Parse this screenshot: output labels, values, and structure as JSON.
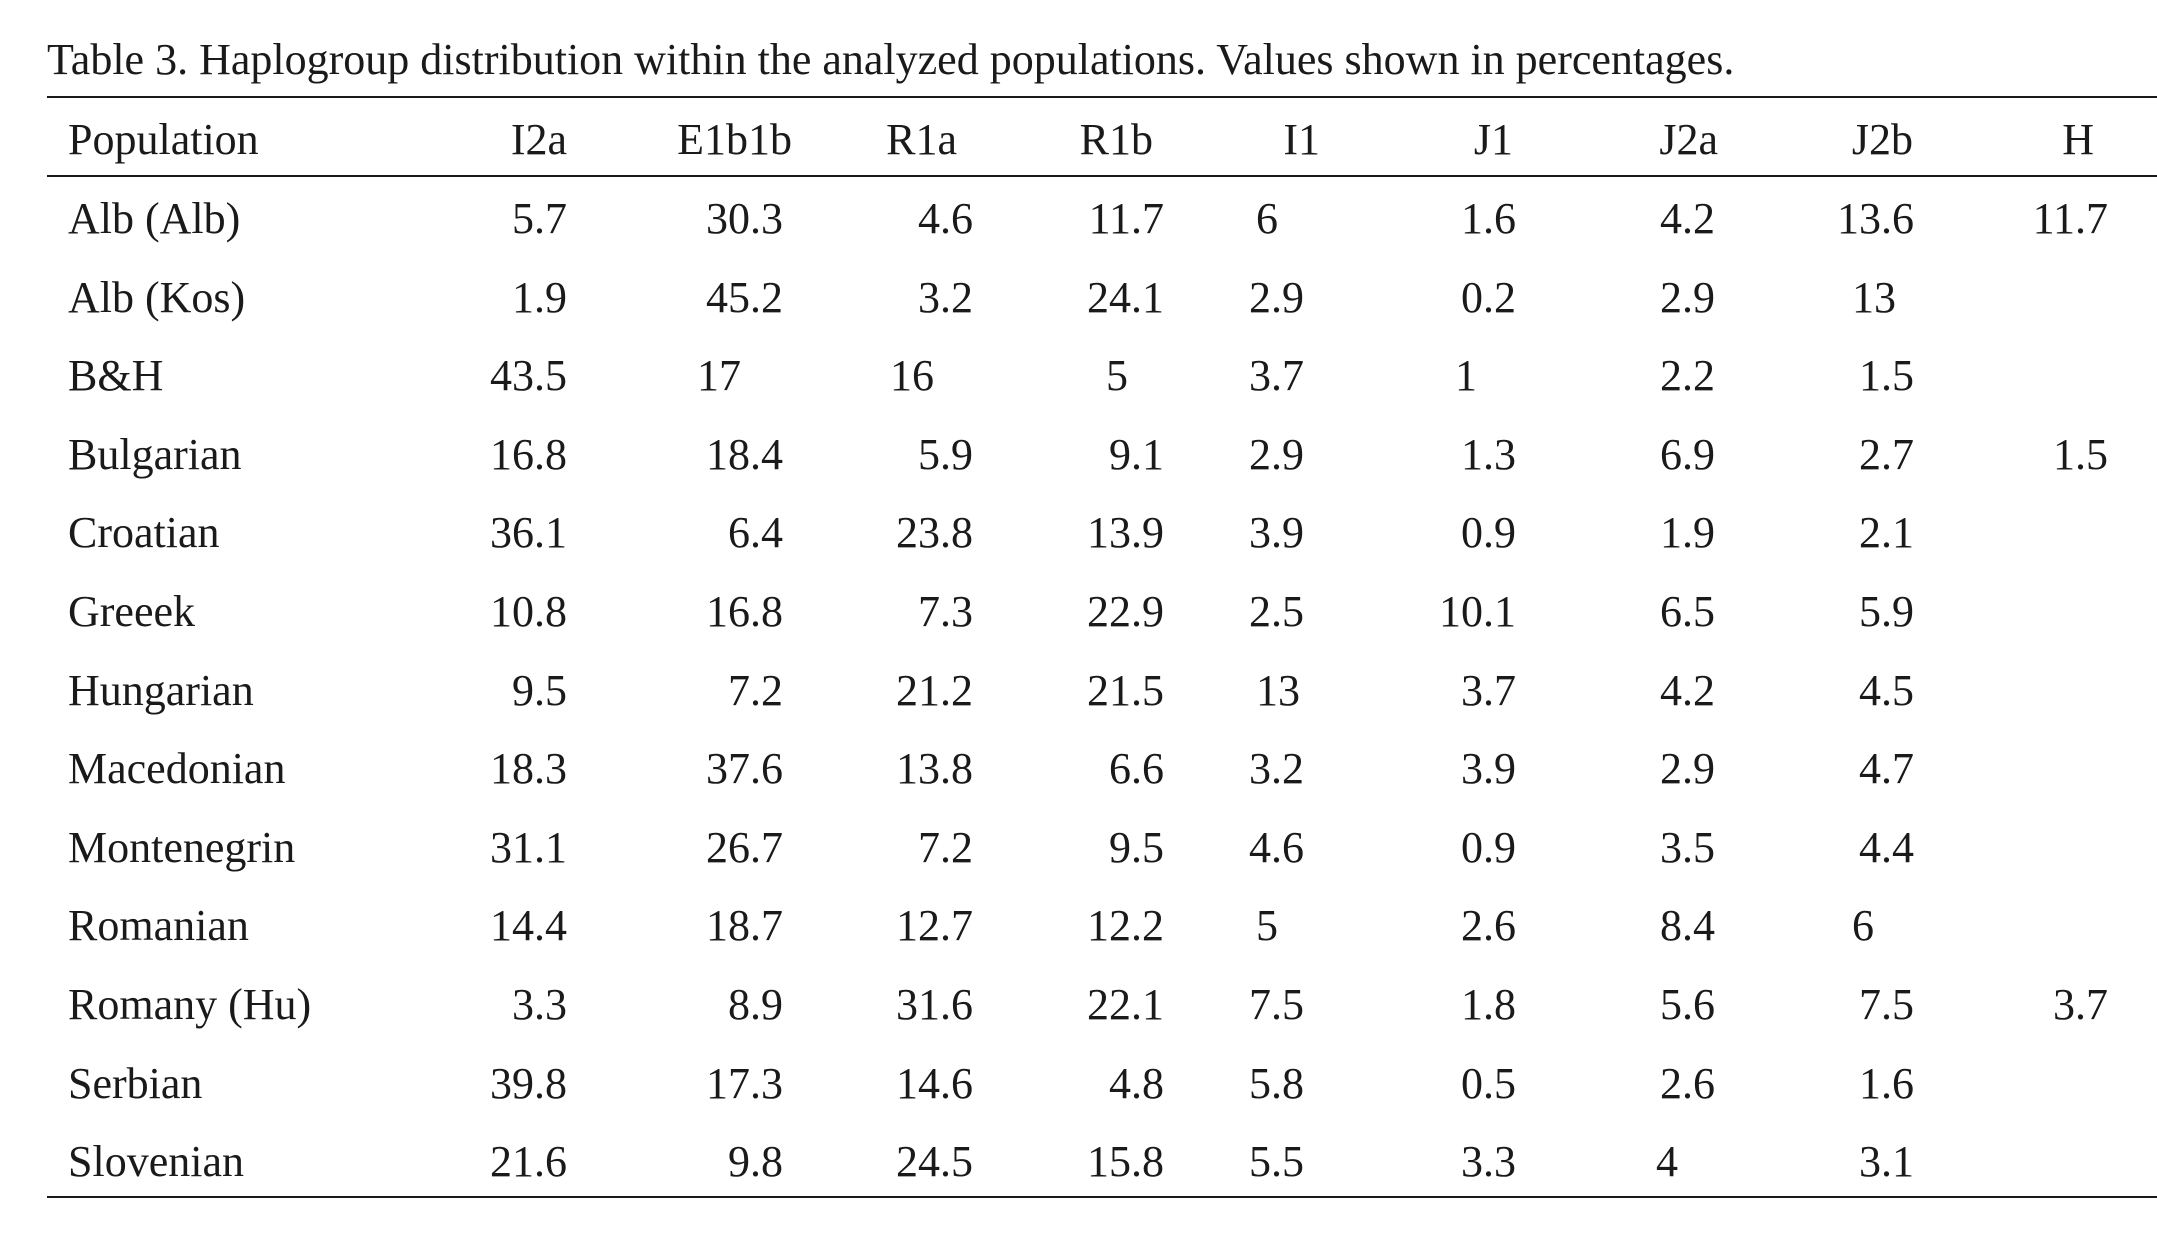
{
  "caption": "Table 3. Haplogroup distribution within the analyzed populations. Values shown in percentages.",
  "header": {
    "population": "Population",
    "columns": [
      "I2a",
      "E1b1b",
      "R1a",
      "R1b",
      "I1",
      "J1",
      "J2a",
      "J2b",
      "H"
    ]
  },
  "rows": [
    {
      "population": "Alb (Alb)",
      "values": [
        "5.7",
        "30.3",
        "4.6",
        "11.7",
        "6",
        "1.6",
        "4.2",
        "13.6",
        "11.7"
      ]
    },
    {
      "population": "Alb (Kos)",
      "values": [
        "1.9",
        "45.2",
        "3.2",
        "24.1",
        "2.9",
        "0.2",
        "2.9",
        "13",
        ""
      ]
    },
    {
      "population": "B&H",
      "values": [
        "43.5",
        "17",
        "16",
        "5",
        "3.7",
        "1",
        "2.2",
        "1.5",
        ""
      ]
    },
    {
      "population": "Bulgarian",
      "values": [
        "16.8",
        "18.4",
        "5.9",
        "9.1",
        "2.9",
        "1.3",
        "6.9",
        "2.7",
        "1.5"
      ]
    },
    {
      "population": "Croatian",
      "values": [
        "36.1",
        "6.4",
        "23.8",
        "13.9",
        "3.9",
        "0.9",
        "1.9",
        "2.1",
        ""
      ]
    },
    {
      "population": "Greeek",
      "values": [
        "10.8",
        "16.8",
        "7.3",
        "22.9",
        "2.5",
        "10.1",
        "6.5",
        "5.9",
        ""
      ]
    },
    {
      "population": "Hungarian",
      "values": [
        "9.5",
        "7.2",
        "21.2",
        "21.5",
        "13",
        "3.7",
        "4.2",
        "4.5",
        ""
      ]
    },
    {
      "population": "Macedonian",
      "values": [
        "18.3",
        "37.6",
        "13.8",
        "6.6",
        "3.2",
        "3.9",
        "2.9",
        "4.7",
        ""
      ]
    },
    {
      "population": "Montenegrin",
      "values": [
        "31.1",
        "26.7",
        "7.2",
        "9.5",
        "4.6",
        "0.9",
        "3.5",
        "4.4",
        ""
      ]
    },
    {
      "population": "Romanian",
      "values": [
        "14.4",
        "18.7",
        "12.7",
        "12.2",
        "5",
        "2.6",
        "8.4",
        "6",
        ""
      ]
    },
    {
      "population": "Romany (Hu)",
      "values": [
        "3.3",
        "8.9",
        "31.6",
        "22.1",
        "7.5",
        "1.8",
        "5.6",
        "7.5",
        "3.7"
      ]
    },
    {
      "population": "Serbian",
      "values": [
        "39.8",
        "17.3",
        "14.6",
        "4.8",
        "5.8",
        "0.5",
        "2.6",
        "1.6",
        ""
      ]
    },
    {
      "population": "Slovenian",
      "values": [
        "21.6",
        "9.8",
        "24.5",
        "15.8",
        "5.5",
        "3.3",
        "4",
        "3.1",
        ""
      ]
    }
  ]
}
